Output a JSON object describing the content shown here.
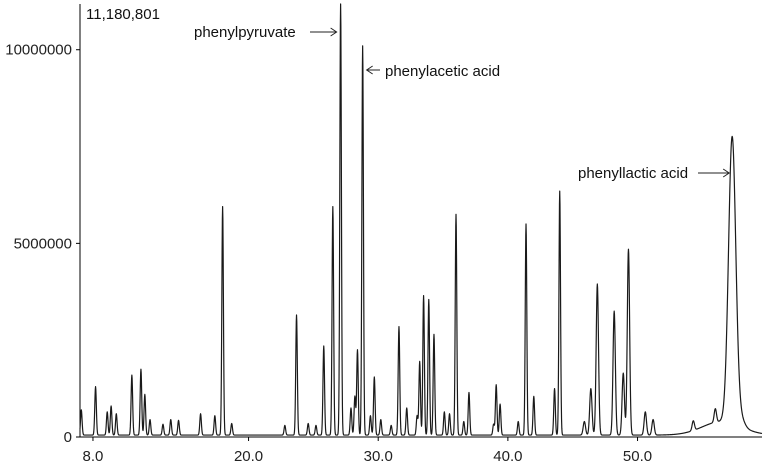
{
  "chart_data": {
    "type": "line",
    "max_intensity_label": "11,180,801",
    "x_ticks": [
      "8.0",
      "20.0",
      "30.0",
      "40.0",
      "50.0"
    ],
    "x_tick_values": [
      8.0,
      20.0,
      30.0,
      40.0,
      50.0
    ],
    "y_ticks": [
      "0",
      "5000000",
      "10000000"
    ],
    "y_tick_values": [
      0,
      5000000,
      10000000
    ],
    "xlim": [
      7.0,
      59.6
    ],
    "ylim": [
      0,
      11180801
    ],
    "baseline": 50000,
    "peaks": [
      [
        7.1,
        650000
      ],
      [
        8.2,
        1250000
      ],
      [
        9.1,
        600000
      ],
      [
        9.4,
        750000
      ],
      [
        9.8,
        550000
      ],
      [
        11.0,
        1550000
      ],
      [
        11.7,
        1700000
      ],
      [
        12.0,
        1050000
      ],
      [
        12.4,
        400000
      ],
      [
        13.4,
        280000
      ],
      [
        14.0,
        400000
      ],
      [
        14.6,
        380000
      ],
      [
        16.3,
        550000
      ],
      [
        17.4,
        500000
      ],
      [
        18.0,
        5900000
      ],
      [
        18.7,
        300000
      ],
      [
        22.8,
        250000
      ],
      [
        23.7,
        3100000
      ],
      [
        24.6,
        300000
      ],
      [
        25.2,
        250000
      ],
      [
        25.8,
        2300000
      ],
      [
        26.5,
        5900000
      ],
      [
        27.1,
        11180801
      ],
      [
        27.9,
        700000
      ],
      [
        28.2,
        1000000
      ],
      [
        28.4,
        2200000
      ],
      [
        28.8,
        10050000
      ],
      [
        29.4,
        500000
      ],
      [
        29.7,
        1500000
      ],
      [
        30.2,
        400000
      ],
      [
        31.0,
        250000
      ],
      [
        31.6,
        2800000
      ],
      [
        32.2,
        700000
      ],
      [
        33.0,
        500000
      ],
      [
        33.2,
        1900000
      ],
      [
        33.5,
        3600000
      ],
      [
        33.9,
        3500000
      ],
      [
        34.3,
        2600000
      ],
      [
        35.1,
        600000
      ],
      [
        35.5,
        550000
      ],
      [
        36.0,
        5700000
      ],
      [
        36.6,
        350000
      ],
      [
        37.0,
        1100000
      ],
      [
        38.9,
        280000
      ],
      [
        39.1,
        1300000
      ],
      [
        39.4,
        800000
      ],
      [
        40.8,
        350000
      ],
      [
        41.4,
        5450000
      ],
      [
        42.0,
        1000000
      ],
      [
        43.6,
        1200000
      ],
      [
        44.0,
        6300000
      ],
      [
        45.9,
        350000
      ],
      [
        46.4,
        1200000
      ],
      [
        46.9,
        3900000
      ],
      [
        48.2,
        3200000
      ],
      [
        48.9,
        1600000
      ],
      [
        49.3,
        4800000
      ],
      [
        50.6,
        600000
      ],
      [
        51.2,
        400000
      ],
      [
        54.3,
        250000
      ],
      [
        56.0,
        350000
      ],
      [
        57.3,
        7400000
      ],
      [
        58.0,
        200000
      ]
    ],
    "annotations": [
      {
        "label": "phenylpyruvate",
        "x": 27.1
      },
      {
        "label": "phenylacetic acid",
        "x": 28.8
      },
      {
        "label": "phenyllactic acid",
        "x": 57.3
      }
    ]
  }
}
